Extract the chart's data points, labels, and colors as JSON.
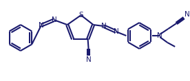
{
  "bg_color": "#ffffff",
  "line_color": "#1a1a6e",
  "line_width": 1.5,
  "text_color": "#1a1a6e",
  "font_size": 7.0,
  "figsize": [
    2.76,
    1.18
  ],
  "dpi": 100,
  "xlim": [
    0,
    276
  ],
  "ylim": [
    0,
    118
  ]
}
